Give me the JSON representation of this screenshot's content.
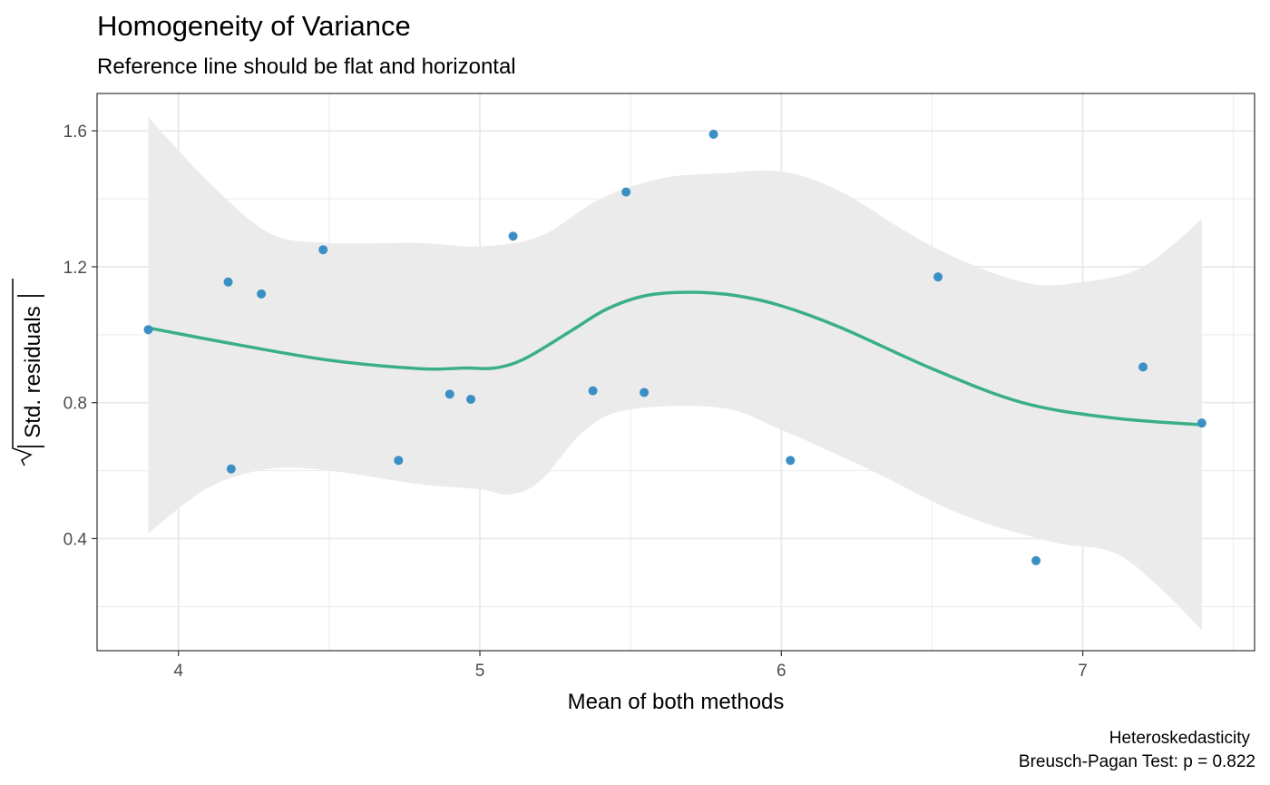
{
  "chart_data": {
    "type": "scatter",
    "title": "Homogeneity of Variance",
    "subtitle": "Reference line should be flat and horizontal",
    "xlabel": "Mean of both methods",
    "ylabel": "Std. residuals",
    "xlim": [
      3.73,
      7.57
    ],
    "ylim": [
      0.07,
      1.71
    ],
    "xticks": [
      4,
      5,
      6,
      7
    ],
    "xtick_labels": [
      "4",
      "5",
      "6",
      "7"
    ],
    "yticks": [
      0.4,
      0.8,
      1.2,
      1.6
    ],
    "ytick_labels": [
      "0.4",
      "0.8",
      "1.2",
      "1.6"
    ],
    "grid": true,
    "caption": [
      "Heteroskedasticity",
      "Breusch-Pagan Test: p = 0.822"
    ],
    "colors": {
      "points": "#3a8fc4",
      "smooth": "#3aaf85",
      "band": "#ebebeb",
      "grid": "#ebebeb",
      "panel_border": "#333333"
    },
    "points": [
      {
        "x": 3.9,
        "y": 1.015
      },
      {
        "x": 4.165,
        "y": 1.155
      },
      {
        "x": 4.175,
        "y": 0.605
      },
      {
        "x": 4.275,
        "y": 1.12
      },
      {
        "x": 4.48,
        "y": 1.25
      },
      {
        "x": 4.73,
        "y": 0.63
      },
      {
        "x": 4.9,
        "y": 0.825
      },
      {
        "x": 4.97,
        "y": 0.81
      },
      {
        "x": 5.11,
        "y": 1.29
      },
      {
        "x": 5.375,
        "y": 0.835
      },
      {
        "x": 5.485,
        "y": 1.42
      },
      {
        "x": 5.545,
        "y": 0.83
      },
      {
        "x": 5.775,
        "y": 1.59
      },
      {
        "x": 6.03,
        "y": 0.63
      },
      {
        "x": 6.52,
        "y": 1.17
      },
      {
        "x": 6.845,
        "y": 0.335
      },
      {
        "x": 7.2,
        "y": 0.905
      },
      {
        "x": 7.395,
        "y": 0.74
      }
    ],
    "smooth_line": [
      {
        "x": 3.9,
        "y": 1.02
      },
      {
        "x": 4.2,
        "y": 0.97
      },
      {
        "x": 4.5,
        "y": 0.925
      },
      {
        "x": 4.8,
        "y": 0.9
      },
      {
        "x": 4.95,
        "y": 0.902
      },
      {
        "x": 5.05,
        "y": 0.902
      },
      {
        "x": 5.15,
        "y": 0.93
      },
      {
        "x": 5.3,
        "y": 1.01
      },
      {
        "x": 5.42,
        "y": 1.075
      },
      {
        "x": 5.55,
        "y": 1.115
      },
      {
        "x": 5.7,
        "y": 1.125
      },
      {
        "x": 5.85,
        "y": 1.115
      },
      {
        "x": 6.0,
        "y": 1.085
      },
      {
        "x": 6.2,
        "y": 1.02
      },
      {
        "x": 6.5,
        "y": 0.9
      },
      {
        "x": 6.8,
        "y": 0.8
      },
      {
        "x": 7.1,
        "y": 0.755
      },
      {
        "x": 7.395,
        "y": 0.735
      }
    ],
    "band_upper": [
      {
        "x": 3.9,
        "y": 1.64
      },
      {
        "x": 4.1,
        "y": 1.45
      },
      {
        "x": 4.3,
        "y": 1.3
      },
      {
        "x": 4.5,
        "y": 1.27
      },
      {
        "x": 4.8,
        "y": 1.27
      },
      {
        "x": 5.0,
        "y": 1.26
      },
      {
        "x": 5.2,
        "y": 1.29
      },
      {
        "x": 5.4,
        "y": 1.4
      },
      {
        "x": 5.6,
        "y": 1.46
      },
      {
        "x": 5.8,
        "y": 1.475
      },
      {
        "x": 6.0,
        "y": 1.48
      },
      {
        "x": 6.2,
        "y": 1.42
      },
      {
        "x": 6.5,
        "y": 1.26
      },
      {
        "x": 6.8,
        "y": 1.155
      },
      {
        "x": 7.0,
        "y": 1.155
      },
      {
        "x": 7.2,
        "y": 1.2
      },
      {
        "x": 7.395,
        "y": 1.34
      }
    ],
    "band_lower": [
      {
        "x": 3.9,
        "y": 0.415
      },
      {
        "x": 4.1,
        "y": 0.55
      },
      {
        "x": 4.3,
        "y": 0.605
      },
      {
        "x": 4.5,
        "y": 0.6
      },
      {
        "x": 4.8,
        "y": 0.56
      },
      {
        "x": 5.0,
        "y": 0.545
      },
      {
        "x": 5.1,
        "y": 0.53
      },
      {
        "x": 5.2,
        "y": 0.57
      },
      {
        "x": 5.35,
        "y": 0.72
      },
      {
        "x": 5.5,
        "y": 0.78
      },
      {
        "x": 5.8,
        "y": 0.785
      },
      {
        "x": 6.0,
        "y": 0.72
      },
      {
        "x": 6.3,
        "y": 0.6
      },
      {
        "x": 6.6,
        "y": 0.47
      },
      {
        "x": 6.9,
        "y": 0.39
      },
      {
        "x": 7.1,
        "y": 0.36
      },
      {
        "x": 7.25,
        "y": 0.26
      },
      {
        "x": 7.395,
        "y": 0.13
      }
    ]
  }
}
